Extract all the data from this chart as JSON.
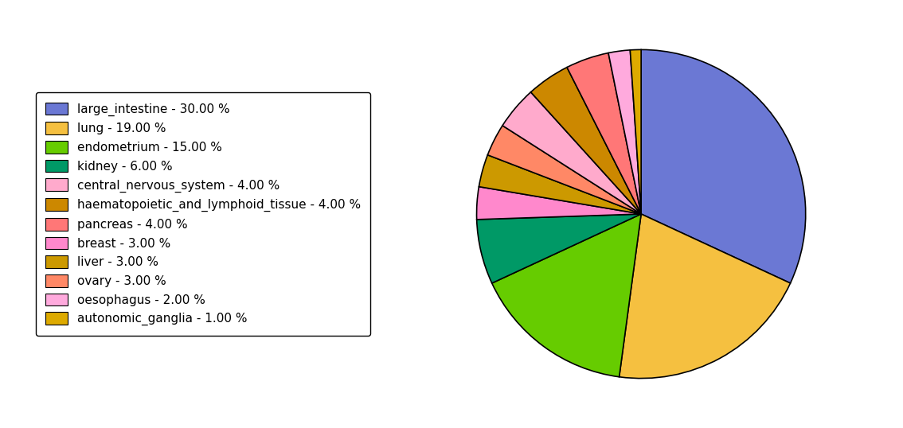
{
  "labels": [
    "large_intestine",
    "lung",
    "endometrium",
    "kidney",
    "central_nervous_system",
    "haematopoietic_and_lymphoid_tissue",
    "pancreas",
    "breast",
    "liver",
    "ovary",
    "oesophagus",
    "autonomic_ganglia"
  ],
  "values": [
    30.0,
    19.0,
    15.0,
    6.0,
    4.0,
    4.0,
    4.0,
    3.0,
    3.0,
    3.0,
    2.0,
    1.0
  ],
  "colors": [
    "#6b78d4",
    "#f5c040",
    "#66cc00",
    "#009966",
    "#ffaacc",
    "#cc8800",
    "#ff7777",
    "#ff88cc",
    "#cc9900",
    "#ff8866",
    "#ffaadd",
    "#ddaa00"
  ],
  "legend_labels": [
    "large_intestine - 30.00 %",
    "lung - 19.00 %",
    "endometrium - 15.00 %",
    "kidney - 6.00 %",
    "central_nervous_system - 4.00 %",
    "haematopoietic_and_lymphoid_tissue - 4.00 %",
    "pancreas - 4.00 %",
    "breast - 3.00 %",
    "liver - 3.00 %",
    "ovary - 3.00 %",
    "oesophagus - 2.00 %",
    "autonomic_ganglia - 1.00 %"
  ],
  "figsize": [
    11.34,
    5.38
  ],
  "dpi": 100
}
